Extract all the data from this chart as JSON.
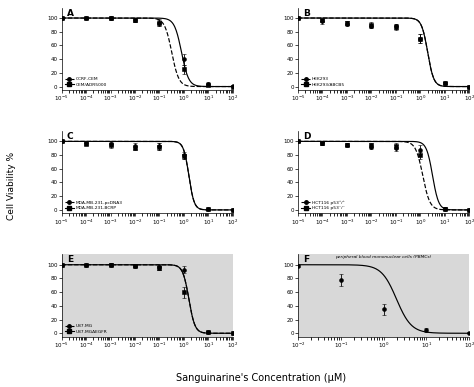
{
  "title": "Sanguinarine's Concentration (μM)",
  "ylabel": "Cell Viability %",
  "panel_bg_bottom": "#d8d8d8",
  "subplots": {
    "A": {
      "lines": [
        {
          "label": "CCRF-CEM",
          "linestyle": "--",
          "ec50_log": -0.5,
          "hill": 3.0,
          "color": "black"
        },
        {
          "label": "CEM/ADR5000",
          "linestyle": "-",
          "ec50_log": -0.1,
          "hill": 3.0,
          "color": "black"
        }
      ],
      "data_points": [
        {
          "x_log": [
            -5,
            -4,
            -3,
            -2,
            -1,
            0,
            1,
            2
          ],
          "y": [
            100,
            100,
            100,
            97,
            93,
            40,
            4,
            1
          ],
          "yerr": [
            1,
            1,
            2,
            3,
            4,
            8,
            2,
            0.5
          ],
          "marker": "o"
        },
        {
          "x_log": [
            -5,
            -4,
            -3,
            -2,
            -1,
            0,
            1,
            2
          ],
          "y": [
            100,
            100,
            100,
            97,
            93,
            25,
            2,
            0
          ],
          "yerr": [
            1,
            2,
            3,
            3,
            5,
            6,
            1,
            0.3
          ],
          "marker": "s"
        }
      ],
      "xlim_log": [
        -5,
        2
      ],
      "xtick_logs": [
        -5,
        -4,
        -3,
        -2,
        -1,
        0,
        1,
        2
      ]
    },
    "B": {
      "lines": [
        {
          "label": "HEK293",
          "linestyle": "--",
          "ec50_log": 0.3,
          "hill": 3.5,
          "color": "black"
        },
        {
          "label": "HEK293/ABCB5",
          "linestyle": "-",
          "ec50_log": 0.3,
          "hill": 3.5,
          "color": "black"
        }
      ],
      "data_points": [
        {
          "x_log": [
            -5,
            -4,
            -3,
            -2,
            -1,
            0,
            1,
            2
          ],
          "y": [
            100,
            95,
            92,
            88,
            88,
            70,
            5,
            0
          ],
          "yerr": [
            1,
            3,
            3,
            3,
            4,
            7,
            2,
            0.3
          ],
          "marker": "o"
        },
        {
          "x_log": [
            -5,
            -4,
            -3,
            -2,
            -1,
            0,
            1,
            2
          ],
          "y": [
            100,
            97,
            93,
            90,
            87,
            70,
            5,
            0
          ],
          "yerr": [
            1,
            2,
            3,
            4,
            5,
            6,
            2,
            0.3
          ],
          "marker": "s"
        }
      ],
      "xlim_log": [
        -5,
        2
      ],
      "xtick_logs": [
        -5,
        -4,
        -3,
        -2,
        -1,
        0,
        1,
        2
      ]
    },
    "C": {
      "lines": [
        {
          "label": "MDA-MB-231-pcDNA3",
          "linestyle": "--",
          "ec50_log": 0.2,
          "hill": 4.0,
          "color": "black"
        },
        {
          "label": "MDA-MB-231-BCRP",
          "linestyle": "-",
          "ec50_log": 0.2,
          "hill": 4.0,
          "color": "black"
        }
      ],
      "data_points": [
        {
          "x_log": [
            -5,
            -4,
            -3,
            -2,
            -1,
            0,
            1,
            2
          ],
          "y": [
            100,
            97,
            96,
            93,
            93,
            80,
            1,
            0
          ],
          "yerr": [
            1,
            2,
            3,
            4,
            5,
            5,
            1,
            0.3
          ],
          "marker": "o"
        },
        {
          "x_log": [
            -5,
            -4,
            -3,
            -2,
            -1,
            0,
            1,
            2
          ],
          "y": [
            100,
            96,
            94,
            91,
            92,
            78,
            1,
            0
          ],
          "yerr": [
            1,
            2,
            3,
            4,
            5,
            4,
            1,
            0.3
          ],
          "marker": "s"
        }
      ],
      "xlim_log": [
        -5,
        2
      ],
      "xtick_logs": [
        -5,
        -4,
        -3,
        -2,
        -1,
        0,
        1,
        2
      ]
    },
    "D": {
      "lines": [
        {
          "label": "HCT116 p53⁺/⁺",
          "linestyle": "--",
          "ec50_log": 0.1,
          "hill": 3.0,
          "color": "black"
        },
        {
          "label": "HCT116 p53⁻/⁻",
          "linestyle": "-",
          "ec50_log": 0.5,
          "hill": 3.5,
          "color": "black"
        }
      ],
      "data_points": [
        {
          "x_log": [
            -5,
            -4,
            -3,
            -2,
            -1,
            0,
            1,
            2
          ],
          "y": [
            100,
            97,
            95,
            92,
            90,
            88,
            2,
            0
          ],
          "yerr": [
            1,
            2,
            2,
            3,
            4,
            6,
            2,
            0.3
          ],
          "marker": "o"
        },
        {
          "x_log": [
            -5,
            -4,
            -3,
            -2,
            -1,
            0,
            1,
            2
          ],
          "y": [
            100,
            97,
            95,
            94,
            93,
            80,
            2,
            0
          ],
          "yerr": [
            1,
            2,
            2,
            3,
            4,
            5,
            2,
            0.3
          ],
          "marker": "s"
        }
      ],
      "xlim_log": [
        -5,
        2
      ],
      "xtick_logs": [
        -5,
        -4,
        -3,
        -2,
        -1,
        0,
        1,
        2
      ]
    },
    "E": {
      "lines": [
        {
          "label": "U87.MG",
          "linestyle": "--",
          "ec50_log": 0.2,
          "hill": 3.5,
          "color": "black"
        },
        {
          "label": "U87.MGΔEGFR",
          "linestyle": "-",
          "ec50_log": 0.2,
          "hill": 3.5,
          "color": "black"
        }
      ],
      "data_points": [
        {
          "x_log": [
            -5,
            -4,
            -3,
            -2,
            -1,
            0,
            1,
            2
          ],
          "y": [
            100,
            100,
            100,
            98,
            96,
            93,
            2,
            0
          ],
          "yerr": [
            1,
            1,
            2,
            2,
            3,
            5,
            2,
            0.3
          ],
          "marker": "o"
        },
        {
          "x_log": [
            -5,
            -4,
            -3,
            -2,
            -1,
            0,
            1,
            2
          ],
          "y": [
            100,
            100,
            100,
            98,
            95,
            60,
            2,
            0
          ],
          "yerr": [
            1,
            1,
            2,
            2,
            3,
            8,
            2,
            0.3
          ],
          "marker": "s"
        }
      ],
      "xlim_log": [
        -5,
        2
      ],
      "xtick_logs": [
        -5,
        -4,
        -3,
        -2,
        -1,
        0,
        1,
        2
      ]
    },
    "F": {
      "annotation": "peripheral blood mononuclear cells (PBMCs)",
      "lines": [
        {
          "label": "PBMCs",
          "linestyle": "-",
          "ec50_log": 0.3,
          "hill": 2.5,
          "color": "black"
        }
      ],
      "data_points": [
        {
          "x_log": [
            -2,
            -1,
            0,
            1,
            2
          ],
          "y": [
            98,
            78,
            35,
            5,
            1
          ],
          "yerr": [
            2,
            9,
            8,
            3,
            1
          ],
          "marker": "o"
        }
      ],
      "xlim_log": [
        -2,
        2
      ],
      "xtick_logs": [
        -2,
        -1,
        0,
        1,
        2
      ]
    }
  }
}
